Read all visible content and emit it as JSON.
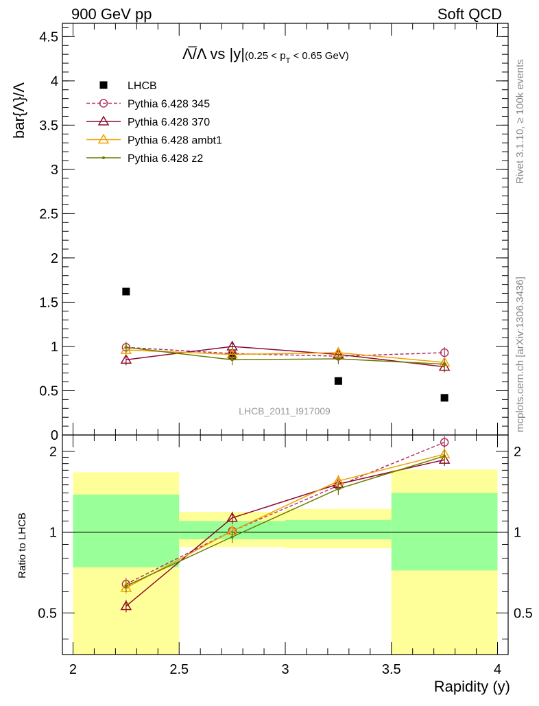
{
  "header": {
    "left": "900 GeV pp",
    "right": "Soft QCD"
  },
  "side_labels": {
    "top": "Rivet 3.1.10, ≥ 100k events",
    "bottom": "mcplots.cern.ch [arXiv:1306.3436]"
  },
  "watermark": "LHCB_2011_I917009",
  "chart_data": [
    {
      "type": "scatter",
      "title_main": "Λ̅/Λ vs |y|",
      "title_sub": "(0.25 < p",
      "title_sub_T": "T",
      "title_sub_end": " < 0.65 GeV)",
      "ylabel": "bar{Λ}/Λ",
      "xlim": [
        1.95,
        4.05
      ],
      "ylim": [
        0,
        4.65
      ],
      "y_ticks": [
        "0",
        "0.5",
        "1",
        "1.5",
        "2",
        "2.5",
        "3",
        "3.5",
        "4",
        "4.5"
      ],
      "legend_position": "top-left",
      "x": [
        2.25,
        2.75,
        3.25,
        3.75
      ],
      "series": [
        {
          "name": "LHCB",
          "color": "#000000",
          "marker": "square",
          "values": [
            1.62,
            0.9,
            0.61,
            0.42
          ]
        },
        {
          "name": "Pythia 6.428 345",
          "color": "#b03060",
          "marker": "circle-open",
          "dashed": true,
          "values": [
            0.99,
            0.92,
            0.89,
            0.93
          ]
        },
        {
          "name": "Pythia 6.428 370",
          "color": "#8b0a2a",
          "marker": "triangle-open",
          "values": [
            0.85,
            1.0,
            0.91,
            0.77
          ]
        },
        {
          "name": "Pythia 6.428 ambt1",
          "color": "#f0a000",
          "marker": "triangle-open",
          "values": [
            0.96,
            0.91,
            0.93,
            0.82
          ]
        },
        {
          "name": "Pythia 6.428 z2",
          "color": "#6b7a00",
          "marker": "dot",
          "values": [
            0.99,
            0.85,
            0.86,
            0.8
          ]
        }
      ]
    },
    {
      "type": "line",
      "ylabel": "Ratio to LHCB",
      "xlabel": "Rapidity (y)",
      "xlim": [
        1.95,
        4.05
      ],
      "ylim": [
        0.35,
        2.3
      ],
      "x_ticks": [
        "2",
        "2.5",
        "3",
        "3.5",
        "4"
      ],
      "y_ticks": [
        "0.5",
        "1",
        "2"
      ],
      "bands": [
        {
          "x0": 2.0,
          "x1": 2.5,
          "yellow": [
            0.35,
            1.67
          ],
          "green": [
            0.74,
            1.38
          ]
        },
        {
          "x0": 2.5,
          "x1": 3.0,
          "yellow": [
            0.88,
            1.19
          ],
          "green": [
            0.94,
            1.1
          ]
        },
        {
          "x0": 3.0,
          "x1": 3.5,
          "yellow": [
            0.87,
            1.22
          ],
          "green": [
            0.94,
            1.11
          ]
        },
        {
          "x0": 3.5,
          "x1": 4.0,
          "yellow": [
            0.35,
            1.71
          ],
          "green": [
            0.72,
            1.4
          ]
        }
      ],
      "x": [
        2.25,
        2.75,
        3.25,
        3.75
      ],
      "series": [
        {
          "name": "Pythia 6.428 345",
          "color": "#b03060",
          "marker": "circle-open",
          "dashed": true,
          "values": [
            0.64,
            1.01,
            1.49,
            2.16
          ]
        },
        {
          "name": "Pythia 6.428 370",
          "color": "#8b0a2a",
          "marker": "triangle-open",
          "values": [
            0.53,
            1.13,
            1.51,
            1.86
          ]
        },
        {
          "name": "Pythia 6.428 ambt1",
          "color": "#f0a000",
          "marker": "triangle-open",
          "values": [
            0.62,
            1.01,
            1.55,
            1.95
          ]
        },
        {
          "name": "Pythia 6.428 z2",
          "color": "#6b7a00",
          "marker": "dot",
          "values": [
            0.63,
            0.96,
            1.45,
            1.92
          ]
        }
      ]
    }
  ]
}
